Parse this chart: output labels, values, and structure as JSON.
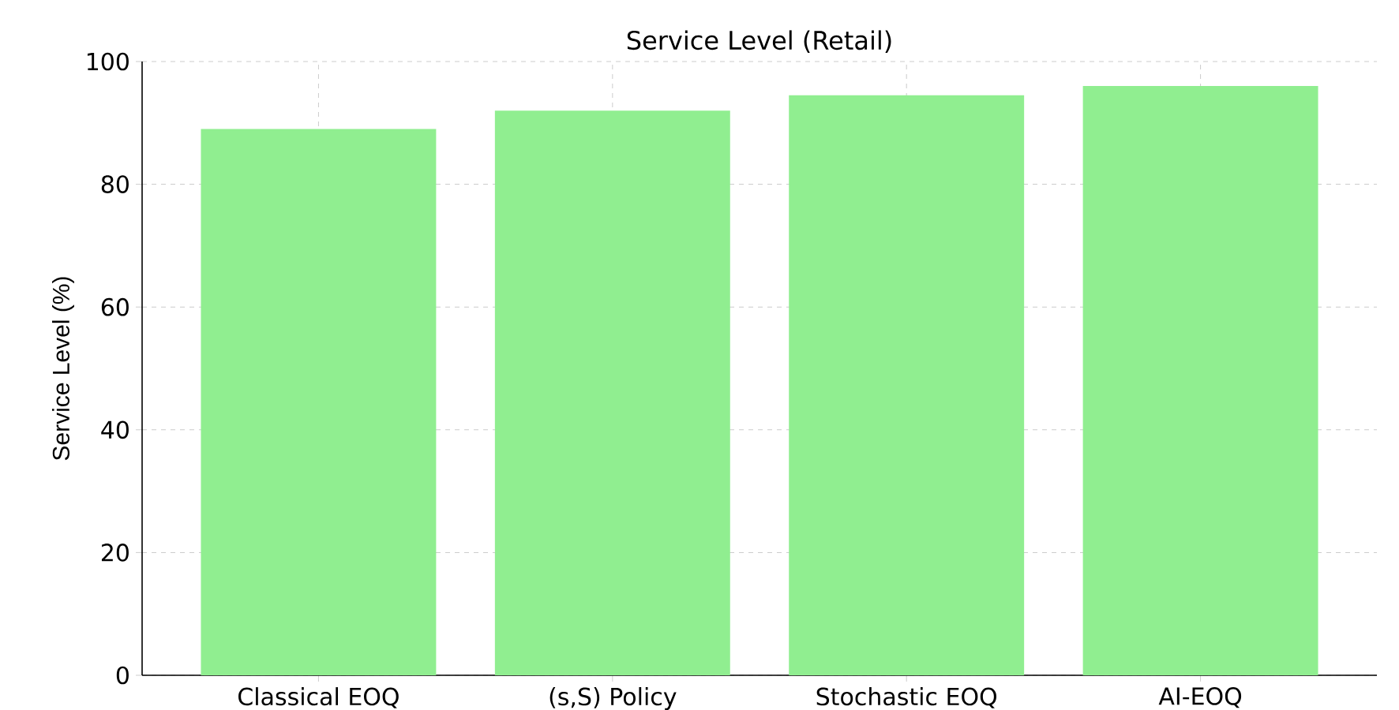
{
  "chart_data": {
    "type": "bar",
    "title": "Service Level (Retail)",
    "ylabel": "Service Level (%)",
    "categories": [
      "Classical EOQ",
      "(s,S) Policy",
      "Stochastic EOQ",
      "AI-EOQ"
    ],
    "values": [
      89,
      92,
      94.5,
      96
    ],
    "color": "#90ee90",
    "ylim": [
      0,
      100
    ],
    "yticks": [
      0,
      20,
      40,
      60,
      80,
      100
    ],
    "grid": true
  }
}
